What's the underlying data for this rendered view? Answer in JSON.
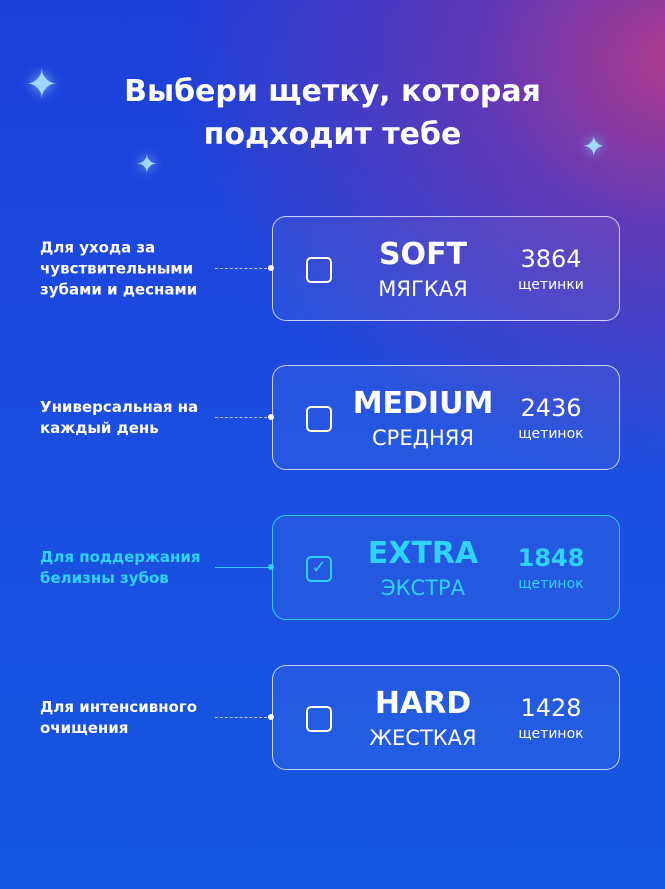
{
  "title": {
    "line1": "Выбери щетку, которая",
    "line2": "подходит тебе"
  },
  "options": [
    {
      "label": "Для ухода за чувствительными зубами и деснами",
      "name": "SOFT",
      "sub": "МЯГКАЯ",
      "count": "3864",
      "unit": "щетинки",
      "checked": false
    },
    {
      "label": "Универсальная на каждый день",
      "name": "MEDIUM",
      "sub": "СРЕДНЯЯ",
      "count": "2436",
      "unit": "щетинок",
      "checked": false
    },
    {
      "label": "Для поддержания белизны зубов",
      "name": "EXTRA",
      "sub": "ЭКСТРА",
      "count": "1848",
      "unit": "щетинок",
      "checked": true
    },
    {
      "label": "Для интенсивного очищения",
      "name": "HARD",
      "sub": "ЖЕСТКАЯ",
      "count": "1428",
      "unit": "щетинок",
      "checked": false
    }
  ],
  "colors": {
    "accent": "#2fd3ff"
  }
}
